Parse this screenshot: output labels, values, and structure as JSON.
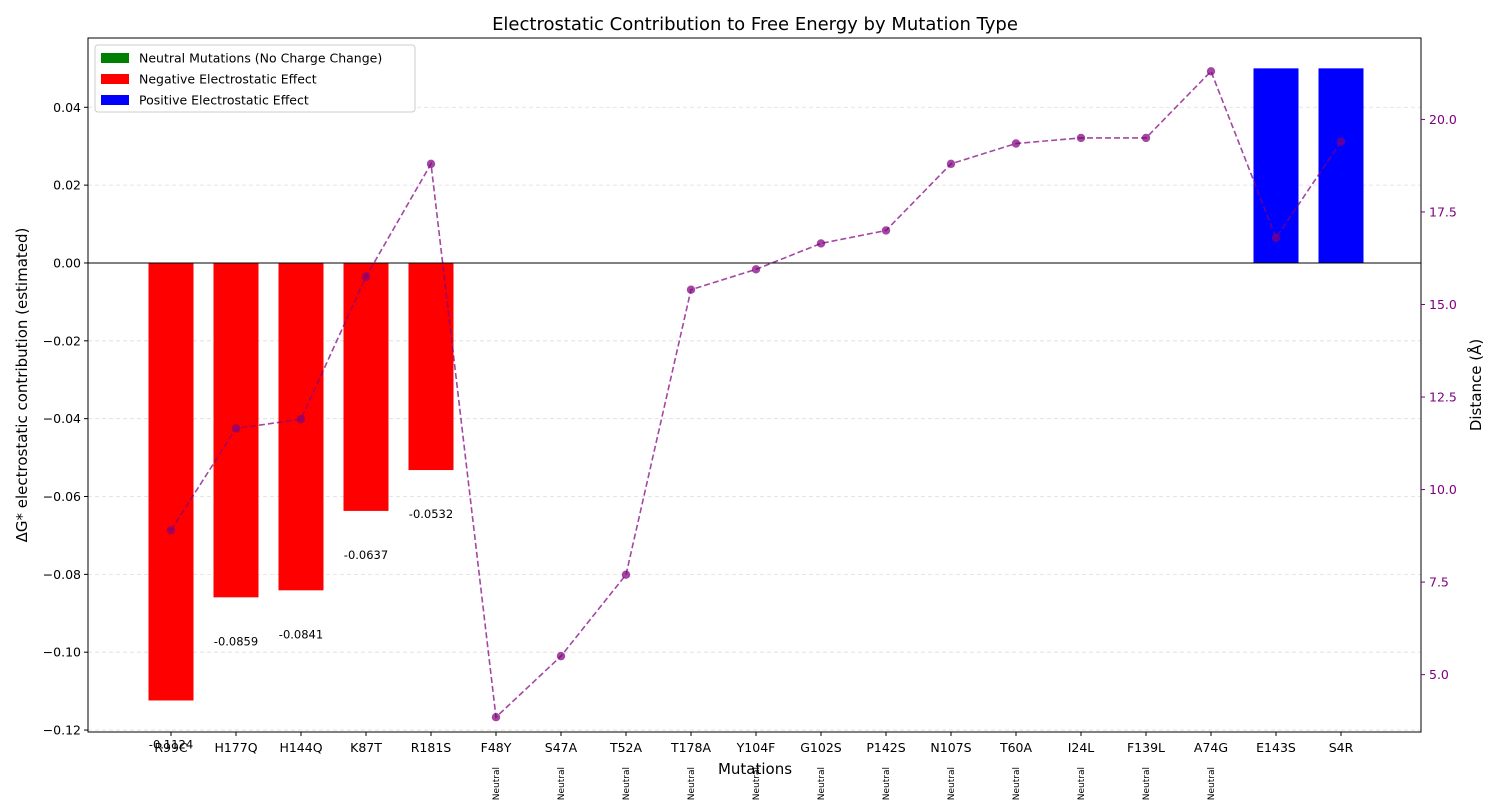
{
  "chart_data": {
    "type": "bar",
    "title": "Electrostatic Contribution to Free Energy by Mutation Type",
    "xlabel": "Mutations",
    "ylabel": "ΔG* electrostatic contribution (estimated)",
    "y2label": "Distance (Å)",
    "ylim": [
      -0.1205,
      0.0578
    ],
    "y2lim": [
      3.45,
      22.2
    ],
    "yticks": [
      -0.12,
      -0.1,
      -0.08,
      -0.06,
      -0.04,
      -0.02,
      0.0,
      0.02,
      0.04
    ],
    "ytick_labels": [
      "−0.12",
      "−0.10",
      "−0.08",
      "−0.06",
      "−0.04",
      "−0.02",
      "0.00",
      "0.02",
      "0.04"
    ],
    "y2ticks": [
      5.0,
      7.5,
      10.0,
      12.5,
      15.0,
      17.5,
      20.0
    ],
    "y2tick_labels": [
      "5.0",
      "7.5",
      "10.0",
      "12.5",
      "15.0",
      "17.5",
      "20.0"
    ],
    "grid": "horizontal dashed",
    "legend_position": "top-left",
    "categories": [
      "R99C",
      "H177Q",
      "H144Q",
      "K87T",
      "R181S",
      "F48Y",
      "S47A",
      "T52A",
      "T178A",
      "Y104F",
      "G102S",
      "P142S",
      "N107S",
      "T60A",
      "I24L",
      "F139L",
      "A74G",
      "E143S",
      "S4R"
    ],
    "values": [
      -0.1124,
      -0.0859,
      -0.0841,
      -0.0637,
      -0.0532,
      0,
      0,
      0,
      0,
      0,
      0,
      0,
      0,
      0,
      0,
      0,
      0,
      0.05,
      0.05
    ],
    "bar_labels": [
      "-0.1124",
      "-0.0859",
      "-0.0841",
      "-0.0637",
      "-0.0532",
      "",
      "",
      "",
      "",
      "",
      "",
      "",
      "",
      "",
      "",
      "",
      "",
      "",
      ""
    ],
    "effect": [
      "negative",
      "negative",
      "negative",
      "negative",
      "negative",
      "neutral",
      "neutral",
      "neutral",
      "neutral",
      "neutral",
      "neutral",
      "neutral",
      "neutral",
      "neutral",
      "neutral",
      "neutral",
      "neutral",
      "positive",
      "positive"
    ],
    "neutral_tag": "Neutral",
    "distance": [
      8.9,
      11.65,
      11.9,
      15.75,
      18.8,
      3.85,
      5.5,
      7.7,
      15.4,
      15.95,
      16.65,
      17.0,
      18.8,
      19.35,
      19.5,
      19.5,
      21.3,
      16.8,
      19.4
    ],
    "legend": [
      {
        "label": "Neutral Mutations (No Charge Change)",
        "color": "#008000"
      },
      {
        "label": "Negative Electrostatic Effect",
        "color": "#ff0000"
      },
      {
        "label": "Positive Electrostatic Effect",
        "color": "#0000ff"
      }
    ],
    "colors": {
      "negative": "#ff0000",
      "positive": "#0000ff",
      "neutral": "#008000",
      "distance_line": "#800080",
      "right_axis": "#800080"
    }
  }
}
